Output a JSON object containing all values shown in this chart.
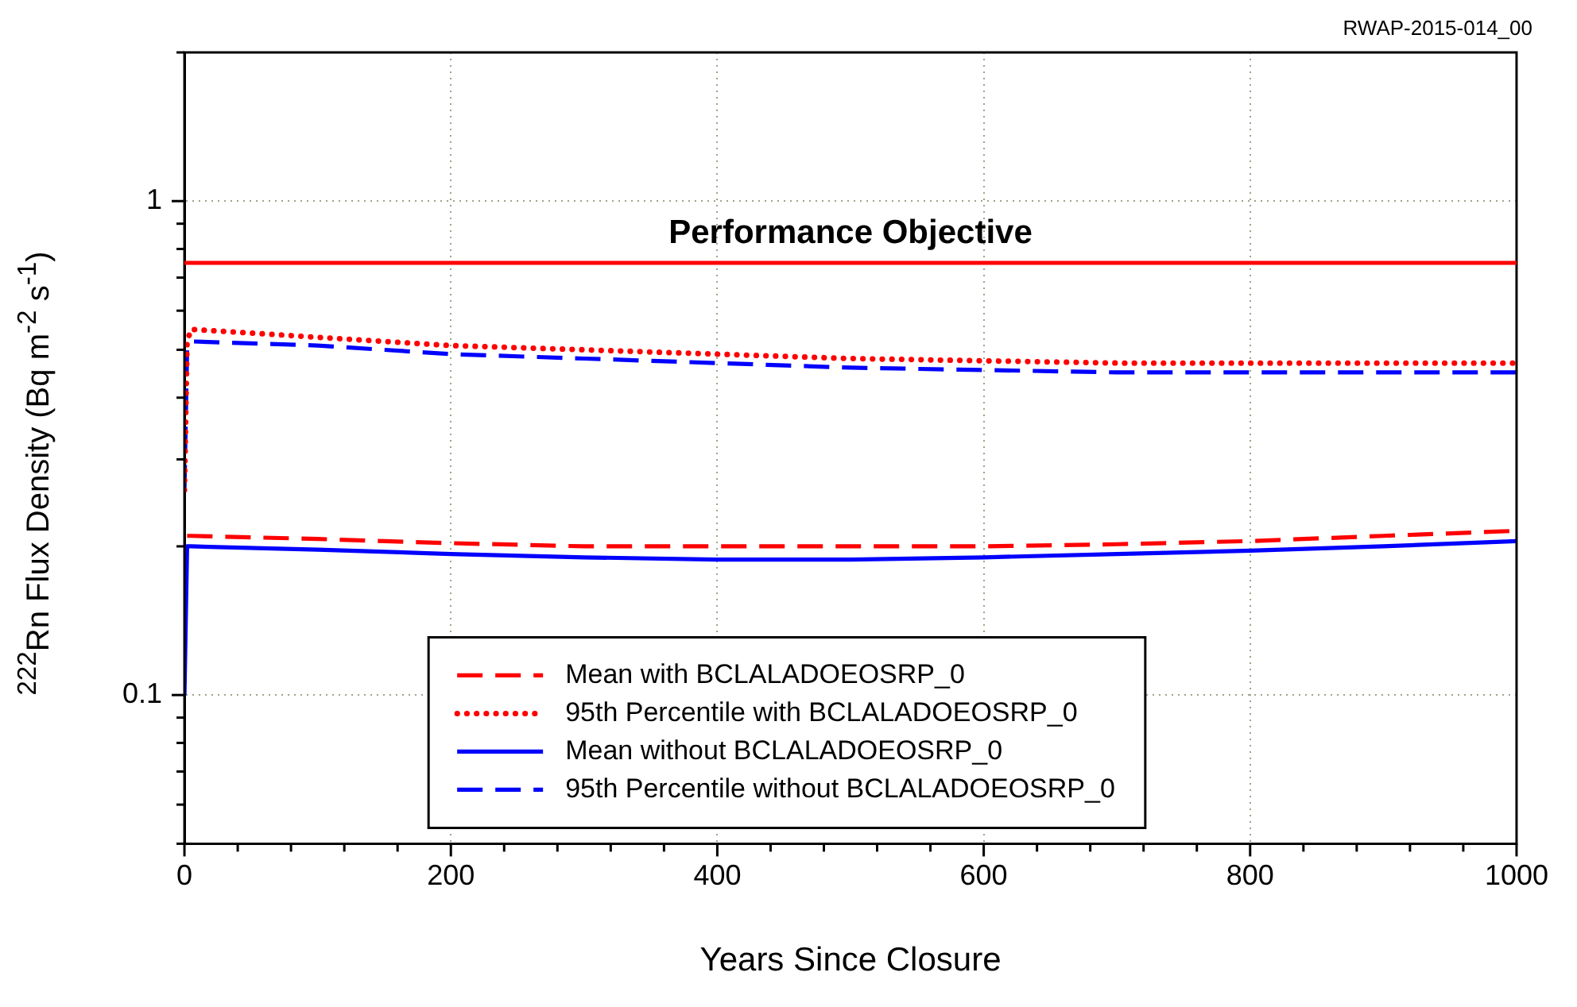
{
  "chart_data": {
    "type": "line",
    "xlabel": "Years Since Closure",
    "ylabel": "$^{222}$Rn Flux Density (Bq m$^{-2}$ s$^{-1}$)",
    "annotations": [
      "RWAP-2015-014_00"
    ],
    "log": "y",
    "grid": true,
    "legend": "bottom",
    "marker": "none",
    "xlim": [
      0,
      1000
    ],
    "xticks": [
      0,
      {
        "value": 40,
        "label": null
      },
      {
        "value": 80,
        "label": null
      },
      {
        "value": 120,
        "label": null
      },
      {
        "value": 160,
        "label": null
      },
      200,
      {
        "value": 240,
        "label": null
      },
      {
        "value": 280,
        "label": null
      },
      {
        "value": 320,
        "label": null
      },
      {
        "value": 360,
        "label": null
      },
      400,
      {
        "value": 440,
        "label": null
      },
      {
        "value": 480,
        "label": null
      },
      {
        "value": 520,
        "label": null
      },
      {
        "value": 560,
        "label": null
      },
      600,
      {
        "value": 640,
        "label": null
      },
      {
        "value": 680,
        "label": null
      },
      {
        "value": 720,
        "label": null
      },
      {
        "value": 760,
        "label": null
      },
      800,
      {
        "value": 840,
        "label": null
      },
      {
        "value": 880,
        "label": null
      },
      {
        "value": 920,
        "label": null
      },
      {
        "value": 960,
        "label": null
      },
      1000
    ],
    "ylim": [
      0.05,
      2
    ],
    "yticks": [
      {
        "value": 0.05,
        "label": null
      },
      {
        "value": 0.06,
        "label": null
      },
      {
        "value": 0.07,
        "label": null
      },
      {
        "value": 0.08,
        "label": null
      },
      {
        "value": 0.09,
        "label": null
      },
      0.1,
      {
        "value": 0.2,
        "label": null
      },
      {
        "value": 0.3,
        "label": null
      },
      {
        "value": 0.4,
        "label": null
      },
      {
        "value": 0.5,
        "label": null
      },
      {
        "value": 0.6,
        "label": null
      },
      {
        "value": 0.7,
        "label": null
      },
      {
        "value": 0.8,
        "label": null
      },
      {
        "value": 0.9,
        "label": null
      },
      1,
      {
        "value": 2,
        "label": null
      }
    ],
    "ref_lines": [
      {
        "axis": "y",
        "value": 0.75,
        "label": "Performance Objective",
        "color": "#ff0000",
        "line_style": "solid"
      }
    ],
    "series": [
      {
        "name": "Mean with BCLALADOEOSRP_0",
        "color": "#ff0000",
        "line_style": "dashed",
        "x": [
          2,
          5,
          100,
          200,
          300,
          400,
          500,
          600,
          700,
          800,
          900,
          1000
        ],
        "values": [
          0.21,
          0.21,
          0.207,
          0.203,
          0.2,
          0.2,
          0.2,
          0.2,
          0.202,
          0.205,
          0.21,
          0.215
        ]
      },
      {
        "name": "95th Percentile with BCLALADOEOSRP_0",
        "color": "#ff0000",
        "line_style": "dotted",
        "x": [
          0,
          2,
          5,
          100,
          200,
          300,
          400,
          500,
          600,
          700,
          800,
          900,
          1000
        ],
        "values": [
          0.26,
          0.52,
          0.55,
          0.53,
          0.51,
          0.5,
          0.49,
          0.48,
          0.475,
          0.47,
          0.47,
          0.47,
          0.47
        ]
      },
      {
        "name": "Mean without BCLALADOEOSRP_0",
        "color": "#0000ff",
        "line_style": "solid",
        "x": [
          0,
          2,
          5,
          100,
          200,
          300,
          400,
          500,
          600,
          700,
          800,
          900,
          1000
        ],
        "values": [
          0.1,
          0.2,
          0.2,
          0.197,
          0.193,
          0.19,
          0.188,
          0.188,
          0.19,
          0.193,
          0.196,
          0.2,
          0.205
        ]
      },
      {
        "name": "95th Percentile without BCLALADOEOSRP_0",
        "color": "#0000ff",
        "line_style": "dashed",
        "x": [
          0,
          2,
          5,
          100,
          200,
          300,
          400,
          500,
          600,
          700,
          800,
          900,
          1000
        ],
        "values": [
          0.26,
          0.5,
          0.52,
          0.51,
          0.49,
          0.48,
          0.47,
          0.46,
          0.455,
          0.45,
          0.45,
          0.45,
          0.45
        ]
      }
    ]
  }
}
